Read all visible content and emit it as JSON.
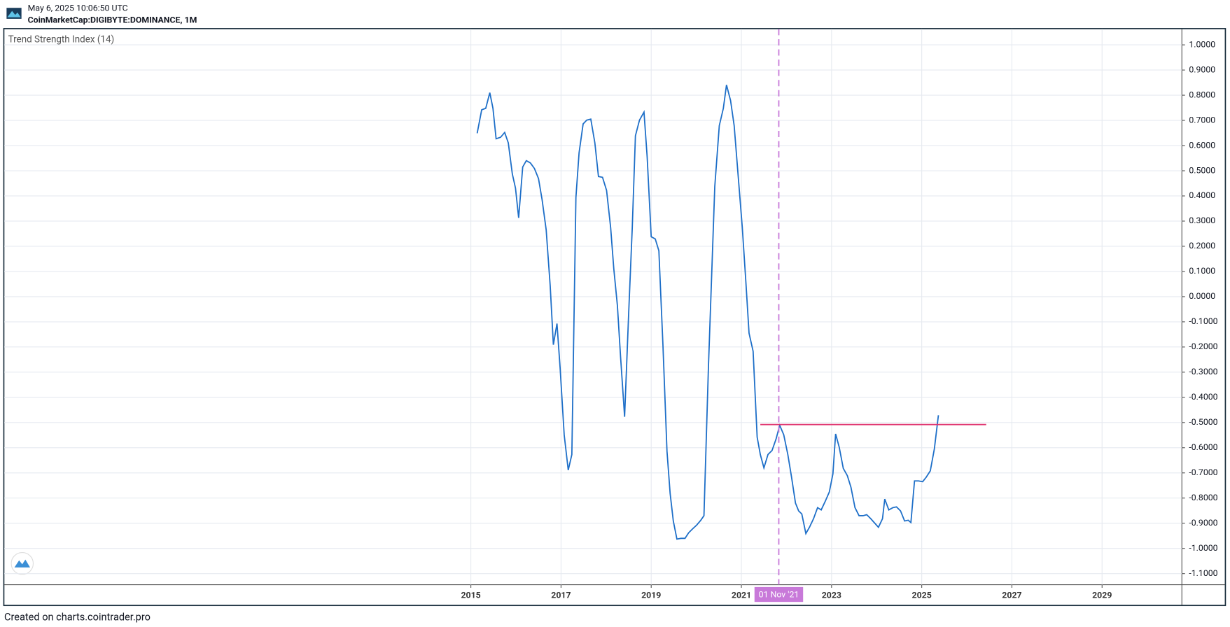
{
  "header": {
    "date": "May 6, 2025 10:06:50 UTC",
    "symbol": "CoinMarketCap:DIGIBYTE:DOMINANCE, 1M"
  },
  "footer": "Created on charts.cointrader.pro",
  "chart_data": {
    "type": "line",
    "series": [
      {
        "name": "Trend Strength Index (14)",
        "color": "#1e6fc8",
        "x": [
          2015.14,
          2015.24,
          2015.33,
          2015.42,
          2015.49,
          2015.56,
          2015.66,
          2015.75,
          2015.83,
          2015.92,
          2015.99,
          2016.06,
          2016.15,
          2016.23,
          2016.32,
          2016.41,
          2016.5,
          2016.58,
          2016.67,
          2016.76,
          2016.83,
          2016.91,
          2016.98,
          2017.07,
          2017.16,
          2017.24,
          2017.33,
          2017.4,
          2017.49,
          2017.57,
          2017.66,
          2017.75,
          2017.83,
          2017.92,
          2018.01,
          2018.1,
          2018.17,
          2018.25,
          2018.32,
          2018.41,
          2018.5,
          2018.58,
          2018.65,
          2018.74,
          2018.84,
          2018.91,
          2019.0,
          2019.09,
          2019.17,
          2019.26,
          2019.35,
          2019.42,
          2019.49,
          2019.57,
          2019.66,
          2019.75,
          2019.83,
          2019.92,
          2020.01,
          2020.1,
          2020.17,
          2020.27,
          2020.41,
          2020.51,
          2020.6,
          2020.67,
          2020.76,
          2020.84,
          2020.93,
          2021.02,
          2021.1,
          2021.17,
          2021.26,
          2021.35,
          2021.42,
          2021.5,
          2021.59,
          2021.68,
          2021.77,
          2021.85,
          2021.94,
          2022.03,
          2022.11,
          2022.2,
          2022.27,
          2022.34,
          2022.43,
          2022.51,
          2022.6,
          2022.69,
          2022.77,
          2022.86,
          2022.95,
          2023.03,
          2023.09,
          2023.17,
          2023.26,
          2023.35,
          2023.43,
          2023.52,
          2023.61,
          2023.7,
          2023.78,
          2023.87,
          2023.96,
          2024.04,
          2024.13,
          2024.18,
          2024.27,
          2024.36,
          2024.44,
          2024.53,
          2024.62,
          2024.7,
          2024.76,
          2024.84,
          2024.93,
          2025.02,
          2025.1,
          2025.19,
          2025.28,
          2025.37
        ],
        "values": [
          0.649,
          0.742,
          0.748,
          0.81,
          0.748,
          0.627,
          0.633,
          0.652,
          0.611,
          0.487,
          0.431,
          0.313,
          0.515,
          0.54,
          0.531,
          0.509,
          0.469,
          0.385,
          0.266,
          0.042,
          -0.191,
          -0.107,
          -0.284,
          -0.549,
          -0.689,
          -0.627,
          0.394,
          0.571,
          0.686,
          0.701,
          0.705,
          0.611,
          0.477,
          0.474,
          0.422,
          0.275,
          0.111,
          -0.035,
          -0.238,
          -0.477,
          -0.067,
          0.275,
          0.639,
          0.701,
          0.733,
          0.556,
          0.238,
          0.229,
          0.182,
          -0.191,
          -0.614,
          -0.782,
          -0.891,
          -0.963,
          -0.96,
          -0.96,
          -0.938,
          -0.922,
          -0.907,
          -0.888,
          -0.87,
          -0.276,
          0.437,
          0.679,
          0.748,
          0.841,
          0.779,
          0.679,
          0.477,
          0.275,
          0.057,
          -0.145,
          -0.217,
          -0.558,
          -0.627,
          -0.68,
          -0.627,
          -0.611,
          -0.565,
          -0.511,
          -0.549,
          -0.627,
          -0.714,
          -0.82,
          -0.851,
          -0.863,
          -0.941,
          -0.916,
          -0.882,
          -0.838,
          -0.847,
          -0.813,
          -0.776,
          -0.704,
          -0.545,
          -0.598,
          -0.682,
          -0.711,
          -0.757,
          -0.838,
          -0.87,
          -0.87,
          -0.866,
          -0.882,
          -0.9,
          -0.916,
          -0.882,
          -0.804,
          -0.847,
          -0.838,
          -0.835,
          -0.851,
          -0.891,
          -0.888,
          -0.897,
          -0.732,
          -0.732,
          -0.735,
          -0.717,
          -0.692,
          -0.605,
          -0.471
        ]
      }
    ],
    "hline": {
      "value": -0.508,
      "x": [
        2021.42,
        2026.43
      ],
      "color": "#e0336e"
    },
    "vline": {
      "x": 2021.83,
      "label": "01 Nov '21",
      "color": "#c879d9"
    },
    "xlim": [
      2004.65,
      2030.77
    ],
    "xticks": [
      2015,
      2017,
      2019,
      2021,
      2023,
      2025,
      2027,
      2029
    ],
    "ylim": [
      -1.144,
      1.063
    ],
    "yticks": [
      {
        "value": 1,
        "label": "1.0000"
      },
      {
        "value": 0.9,
        "label": "0.9000"
      },
      {
        "value": 0.8,
        "label": "0.8000"
      },
      {
        "value": 0.7,
        "label": "0.7000"
      },
      {
        "value": 0.6,
        "label": "0.6000"
      },
      {
        "value": 0.5,
        "label": "0.5000"
      },
      {
        "value": 0.4,
        "label": "0.4000"
      },
      {
        "value": 0.3,
        "label": "0.3000"
      },
      {
        "value": 0.2,
        "label": "0.2000"
      },
      {
        "value": 0.1,
        "label": "0.1000"
      },
      {
        "value": 0,
        "label": "0.0000"
      },
      {
        "value": -0.1,
        "label": "-0.1000"
      },
      {
        "value": -0.2,
        "label": "-0.2000"
      },
      {
        "value": -0.3,
        "label": "-0.3000"
      },
      {
        "value": -0.4,
        "label": "-0.4000"
      },
      {
        "value": -0.5,
        "label": "-0.5000"
      },
      {
        "value": -0.6,
        "label": "-0.6000"
      },
      {
        "value": -0.7,
        "label": "-0.7000"
      },
      {
        "value": -0.8,
        "label": "-0.8000"
      },
      {
        "value": -0.9,
        "label": "-0.9000"
      },
      {
        "value": -1,
        "label": "-1.0000"
      },
      {
        "value": -1.1,
        "label": "-1.1000"
      }
    ],
    "grid": true
  }
}
